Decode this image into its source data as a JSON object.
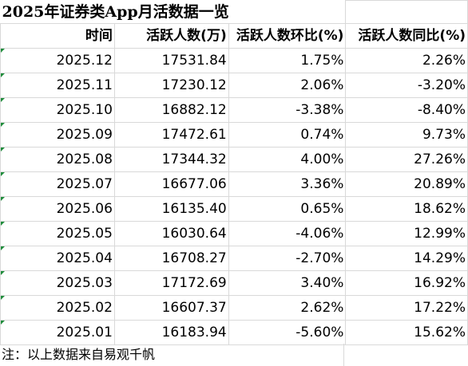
{
  "title": "2025年证券类App月活数据一览",
  "headers": [
    "时间",
    "活跃人数(万)",
    "活跃人数环比(%)",
    "活跃人数同比(%)"
  ],
  "rows": [
    {
      "month": "2025.12",
      "active": "17531.84",
      "mom": "1.75%",
      "yoy": "2.26%"
    },
    {
      "month": "2025.11",
      "active": "17230.12",
      "mom": "2.06%",
      "yoy": "-3.20%"
    },
    {
      "month": "2025.10",
      "active": "16882.12",
      "mom": "-3.38%",
      "yoy": "-8.40%"
    },
    {
      "month": "2025.09",
      "active": "17472.61",
      "mom": "0.74%",
      "yoy": "9.73%"
    },
    {
      "month": "2025.08",
      "active": "17344.32",
      "mom": "4.00%",
      "yoy": "27.26%"
    },
    {
      "month": "2025.07",
      "active": "16677.06",
      "mom": "3.36%",
      "yoy": "20.89%"
    },
    {
      "month": "2025.06",
      "active": "16135.40",
      "mom": "0.65%",
      "yoy": "18.62%"
    },
    {
      "month": "2025.05",
      "active": "16030.64",
      "mom": "-4.06%",
      "yoy": "12.99%"
    },
    {
      "month": "2025.04",
      "active": "16708.27",
      "mom": "-2.70%",
      "yoy": "14.29%"
    },
    {
      "month": "2025.03",
      "active": "17172.69",
      "mom": "3.40%",
      "yoy": "16.92%"
    },
    {
      "month": "2025.02",
      "active": "16607.37",
      "mom": "2.62%",
      "yoy": "17.22%"
    },
    {
      "month": "2025.01",
      "active": "16183.94",
      "mom": "-5.60%",
      "yoy": "15.62%"
    }
  ],
  "note": "注：以上数据来自易观千帆",
  "colors": {
    "grid": "#d9d9d9",
    "flag": "#1f8c3b"
  }
}
